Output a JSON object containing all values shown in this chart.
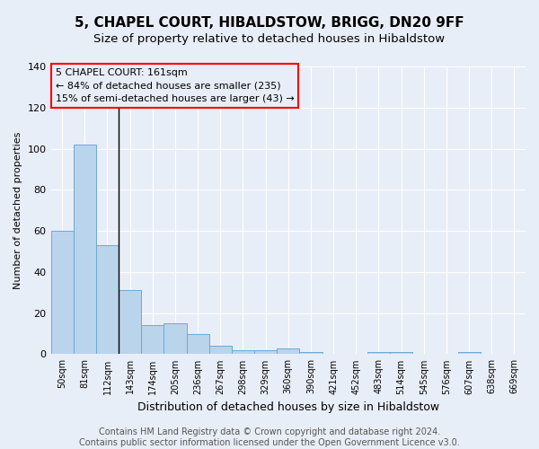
{
  "title": "5, CHAPEL COURT, HIBALDSTOW, BRIGG, DN20 9FF",
  "subtitle": "Size of property relative to detached houses in Hibaldstow",
  "xlabel": "Distribution of detached houses by size in Hibaldstow",
  "ylabel": "Number of detached properties",
  "categories": [
    "50sqm",
    "81sqm",
    "112sqm",
    "143sqm",
    "174sqm",
    "205sqm",
    "236sqm",
    "267sqm",
    "298sqm",
    "329sqm",
    "360sqm",
    "390sqm",
    "421sqm",
    "452sqm",
    "483sqm",
    "514sqm",
    "545sqm",
    "576sqm",
    "607sqm",
    "638sqm",
    "669sqm"
  ],
  "values": [
    60,
    102,
    53,
    31,
    14,
    15,
    10,
    4,
    2,
    2,
    3,
    1,
    0,
    0,
    1,
    1,
    0,
    0,
    1,
    0,
    0
  ],
  "bar_color": "#bad4ec",
  "bar_edge_color": "#6aaad4",
  "bg_color": "#e8eef7",
  "grid_color": "#ffffff",
  "ylim": [
    0,
    140
  ],
  "yticks": [
    0,
    20,
    40,
    60,
    80,
    100,
    120,
    140
  ],
  "annotation_text": "5 CHAPEL COURT: 161sqm\n← 84% of detached houses are smaller (235)\n15% of semi-detached houses are larger (43) →",
  "vline_x": 2.5,
  "footer": "Contains HM Land Registry data © Crown copyright and database right 2024.\nContains public sector information licensed under the Open Government Licence v3.0.",
  "title_fontsize": 11,
  "subtitle_fontsize": 9.5,
  "annotation_fontsize": 8,
  "footer_fontsize": 7,
  "ylabel_fontsize": 8,
  "xlabel_fontsize": 9
}
